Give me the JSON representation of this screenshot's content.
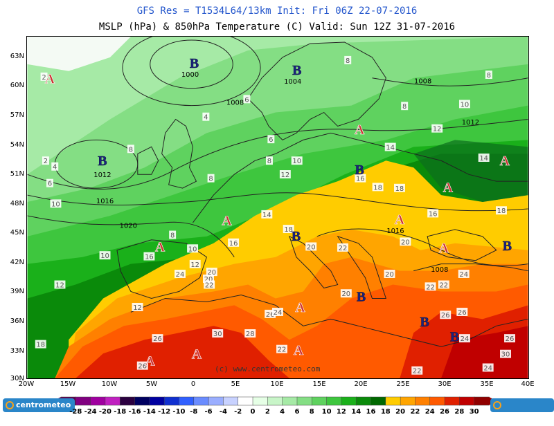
{
  "header": {
    "line1": "GFS Res = T1534L64/13km   Init: Fri 06Z 22-07-2016",
    "line2": "MSLP (hPa) & 850hPa Temperature (C)  Valid: Sun 12Z 31-07-2016"
  },
  "axes": {
    "lat_labels": [
      "63N",
      "60N",
      "57N",
      "54N",
      "51N",
      "48N",
      "45N",
      "42N",
      "39N",
      "36N",
      "33N",
      "30N"
    ],
    "lon_labels": [
      "20W",
      "15W",
      "10W",
      "5W",
      "0",
      "5E",
      "10E",
      "15E",
      "20E",
      "25E",
      "30E",
      "35E",
      "40E"
    ]
  },
  "credit": "(c) www.centrometeo.com",
  "logo_text": "centrometeo",
  "legend": {
    "labels": [
      "-28",
      "-24",
      "-20",
      "-18",
      "-16",
      "-14",
      "-12",
      "-10",
      "-8",
      "-6",
      "-4",
      "-2",
      "0",
      "2",
      "4",
      "6",
      "8",
      "10",
      "12",
      "14",
      "16",
      "18",
      "20",
      "22",
      "24",
      "26",
      "28",
      "30"
    ],
    "colors": [
      "#5a0050",
      "#800080",
      "#a000a0",
      "#c020c0",
      "#2b0040",
      "#000060",
      "#0000a0",
      "#1030d0",
      "#3060ff",
      "#6a8cff",
      "#9aaeff",
      "#c8d2ff",
      "#ffffff",
      "#e6ffe6",
      "#c8f5c8",
      "#a6eaa6",
      "#84de84",
      "#5fd25f",
      "#3ec63e",
      "#1ab01a",
      "#0a8a0a",
      "#006800",
      "#ffcc00",
      "#ffa500",
      "#ff8000",
      "#ff5a00",
      "#e02000",
      "#c00000",
      "#900000"
    ]
  },
  "pressure_centers": [
    {
      "type": "B",
      "lon": 0,
      "lat": 62.3,
      "value": "1000"
    },
    {
      "type": "B",
      "lon": 12.3,
      "lat": 61.6,
      "value": "1004"
    },
    {
      "type": "B",
      "lon": -11,
      "lat": 52.3,
      "value": ""
    },
    {
      "type": "B",
      "lon": 19.8,
      "lat": 51.4,
      "value": ""
    },
    {
      "type": "B",
      "lon": 12.2,
      "lat": 44.6,
      "value": ""
    },
    {
      "type": "B",
      "lon": 20,
      "lat": 38.4,
      "value": ""
    },
    {
      "type": "B",
      "lon": 27.6,
      "lat": 35.8,
      "value": ""
    },
    {
      "type": "B",
      "lon": 31.2,
      "lat": 34.3,
      "value": ""
    },
    {
      "type": "B",
      "lon": 37.5,
      "lat": 43.6,
      "value": ""
    },
    {
      "type": "A",
      "lon": -17.3,
      "lat": 60.7,
      "value": ""
    },
    {
      "type": "A",
      "lon": 19.8,
      "lat": 55.5,
      "value": ""
    },
    {
      "type": "A",
      "lon": 30.4,
      "lat": 49.6,
      "value": ""
    },
    {
      "type": "A",
      "lon": 37.2,
      "lat": 52.3,
      "value": ""
    },
    {
      "type": "A",
      "lon": 3.9,
      "lat": 46.2,
      "value": ""
    },
    {
      "type": "A",
      "lon": -4.1,
      "lat": 43.5,
      "value": ""
    },
    {
      "type": "A",
      "lon": 24.6,
      "lat": 46.3,
      "value": "1016"
    },
    {
      "type": "A",
      "lon": 29.9,
      "lat": 43.4,
      "value": ""
    },
    {
      "type": "A",
      "lon": 12.5,
      "lat": 32.9,
      "value": ""
    },
    {
      "type": "A",
      "lon": -5.3,
      "lat": 31.8,
      "value": ""
    },
    {
      "type": "A",
      "lon": 0.3,
      "lat": 32.5,
      "value": ""
    },
    {
      "type": "A",
      "lon": 12.7,
      "lat": 37.3,
      "value": ""
    }
  ],
  "isobar_labels": [
    {
      "text": "1012",
      "lon": -11,
      "lat": 50.9
    },
    {
      "text": "1016",
      "lon": -10.7,
      "lat": 48.2
    },
    {
      "text": "1020",
      "lon": -7.9,
      "lat": 45.7
    },
    {
      "text": "1008",
      "lon": 4.9,
      "lat": 58.3
    },
    {
      "text": "1008",
      "lon": 27.4,
      "lat": 60.5
    },
    {
      "text": "1012",
      "lon": 33.1,
      "lat": 56.3
    },
    {
      "text": "1008",
      "lon": 29.4,
      "lat": 41.2
    }
  ],
  "temp_labels": [
    {
      "text": "2",
      "lon": -18,
      "lat": 60.9
    },
    {
      "text": "8",
      "lon": 18.4,
      "lat": 62.6
    },
    {
      "text": "8",
      "lon": 35.3,
      "lat": 61.1
    },
    {
      "text": "10",
      "lon": 32.4,
      "lat": 58.1
    },
    {
      "text": "8",
      "lon": 25.2,
      "lat": 57.9
    },
    {
      "text": "6",
      "lon": 6.3,
      "lat": 58.6
    },
    {
      "text": "4",
      "lon": 1.4,
      "lat": 56.8
    },
    {
      "text": "12",
      "lon": 29.1,
      "lat": 55.6
    },
    {
      "text": "14",
      "lon": 23.5,
      "lat": 53.7
    },
    {
      "text": "14",
      "lon": 34.7,
      "lat": 52.6
    },
    {
      "text": "8",
      "lon": -7.6,
      "lat": 53.5
    },
    {
      "text": "6",
      "lon": 9.2,
      "lat": 54.5
    },
    {
      "text": "8",
      "lon": 9,
      "lat": 52.3
    },
    {
      "text": "10",
      "lon": 12.3,
      "lat": 52.3
    },
    {
      "text": "12",
      "lon": 10.9,
      "lat": 50.9
    },
    {
      "text": "2",
      "lon": -17.8,
      "lat": 52.3
    },
    {
      "text": "4",
      "lon": -16.7,
      "lat": 51.7
    },
    {
      "text": "6",
      "lon": -17.3,
      "lat": 50
    },
    {
      "text": "8",
      "lon": 2,
      "lat": 50.5
    },
    {
      "text": "16",
      "lon": 19.9,
      "lat": 50.5
    },
    {
      "text": "18",
      "lon": 22,
      "lat": 49.6
    },
    {
      "text": "18",
      "lon": 24.6,
      "lat": 49.5
    },
    {
      "text": "10",
      "lon": -16.6,
      "lat": 47.9
    },
    {
      "text": "14",
      "lon": 8.7,
      "lat": 46.8
    },
    {
      "text": "16",
      "lon": 28.6,
      "lat": 46.9
    },
    {
      "text": "18",
      "lon": 36.8,
      "lat": 47.2
    },
    {
      "text": "18",
      "lon": 11.3,
      "lat": 45.3
    },
    {
      "text": "8",
      "lon": -2.6,
      "lat": 44.7
    },
    {
      "text": "16",
      "lon": 4.7,
      "lat": 43.9
    },
    {
      "text": "20",
      "lon": 14,
      "lat": 43.5
    },
    {
      "text": "22",
      "lon": 17.8,
      "lat": 43.4
    },
    {
      "text": "20",
      "lon": 25.3,
      "lat": 44
    },
    {
      "text": "10",
      "lon": -10.7,
      "lat": 42.6
    },
    {
      "text": "16",
      "lon": -5.4,
      "lat": 42.5
    },
    {
      "text": "10",
      "lon": -0.2,
      "lat": 43.3
    },
    {
      "text": "12",
      "lon": 0.1,
      "lat": 41.7
    },
    {
      "text": "24",
      "lon": -1.7,
      "lat": 40.7
    },
    {
      "text": "20",
      "lon": 2.1,
      "lat": 40.9
    },
    {
      "text": "20",
      "lon": 1.7,
      "lat": 40.2
    },
    {
      "text": "22",
      "lon": 1.8,
      "lat": 39.6
    },
    {
      "text": "20",
      "lon": 23.4,
      "lat": 40.7
    },
    {
      "text": "22",
      "lon": 28.3,
      "lat": 39.4
    },
    {
      "text": "22",
      "lon": 29.9,
      "lat": 39.6
    },
    {
      "text": "24",
      "lon": 32.3,
      "lat": 40.7
    },
    {
      "text": "12",
      "lon": -16.1,
      "lat": 39.6
    },
    {
      "text": "20",
      "lon": 18.2,
      "lat": 38.7
    },
    {
      "text": "12",
      "lon": -6.8,
      "lat": 37.3
    },
    {
      "text": "26",
      "lon": 9.1,
      "lat": 36.6
    },
    {
      "text": "24",
      "lon": 10,
      "lat": 36.8
    },
    {
      "text": "26",
      "lon": 30.1,
      "lat": 36.5
    },
    {
      "text": "26",
      "lon": 32.1,
      "lat": 36.8
    },
    {
      "text": "30",
      "lon": 2.8,
      "lat": 34.6
    },
    {
      "text": "28",
      "lon": 6.7,
      "lat": 34.6
    },
    {
      "text": "26",
      "lon": -4.4,
      "lat": 34.1
    },
    {
      "text": "24",
      "lon": 32.4,
      "lat": 34.1
    },
    {
      "text": "26",
      "lon": 37.8,
      "lat": 34.1
    },
    {
      "text": "18",
      "lon": -18.4,
      "lat": 33.5
    },
    {
      "text": "22",
      "lon": 10.5,
      "lat": 33
    },
    {
      "text": "30",
      "lon": 37.3,
      "lat": 32.5
    },
    {
      "text": "22",
      "lon": 26.7,
      "lat": 30.8
    },
    {
      "text": "24",
      "lon": 35.2,
      "lat": 31.1
    },
    {
      "text": "26",
      "lon": -6.2,
      "lat": 31.3
    }
  ]
}
